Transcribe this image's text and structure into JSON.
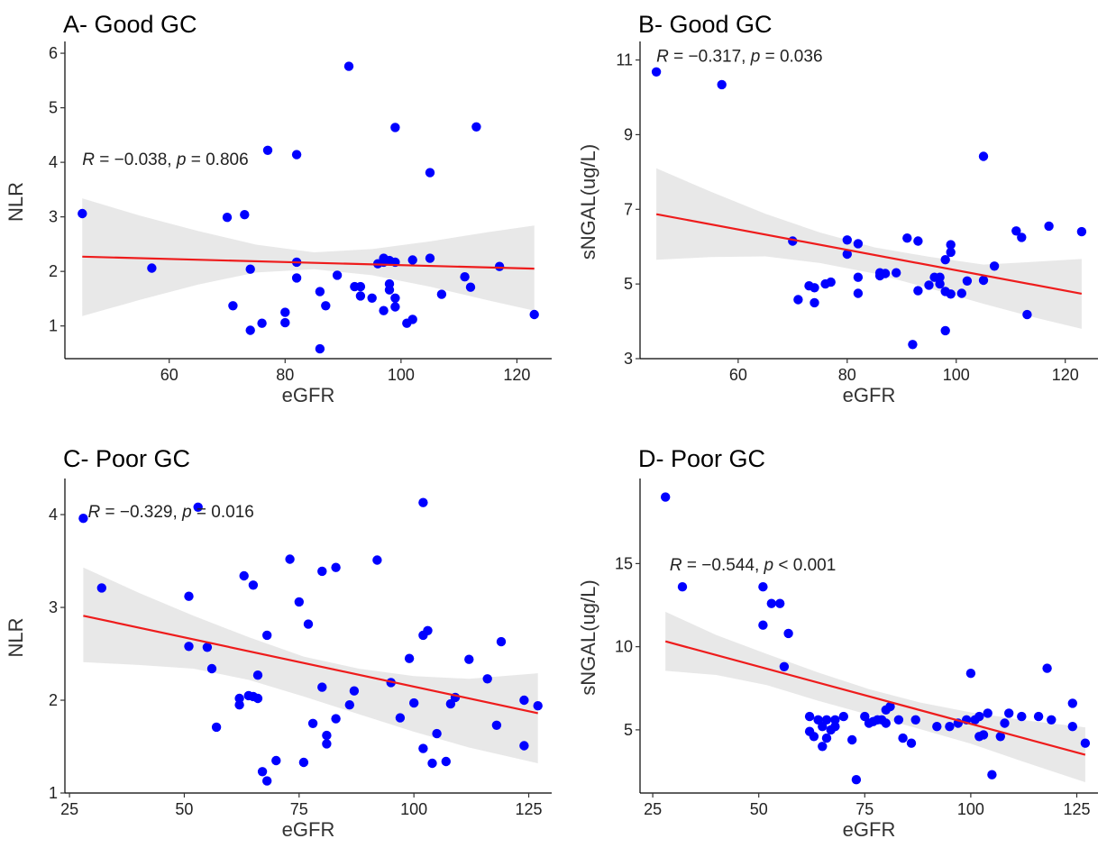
{
  "chart_data": [
    {
      "type": "scatter",
      "title": "A- Good GC",
      "xlabel": "eGFR",
      "ylabel": "NLR",
      "xlim": [
        42,
        126
      ],
      "ylim": [
        0.4,
        6.15
      ],
      "xticks": [
        60,
        80,
        100,
        120
      ],
      "yticks": [
        1,
        2,
        3,
        4,
        5,
        6
      ],
      "annotation": {
        "r_part": "R = −0.038, ",
        "p_sym": "p",
        "p_part": " = 0.806",
        "x": 45,
        "y": 3.95
      },
      "fit": {
        "x": [
          45,
          123
        ],
        "y": [
          2.27,
          2.05
        ]
      },
      "band": {
        "x": [
          45,
          55,
          65,
          75,
          85,
          95,
          105,
          115,
          123
        ],
        "lower": [
          1.18,
          1.48,
          1.76,
          1.98,
          2.04,
          1.93,
          1.72,
          1.47,
          1.28
        ],
        "upper": [
          3.34,
          3.02,
          2.74,
          2.49,
          2.35,
          2.41,
          2.55,
          2.72,
          2.84
        ]
      },
      "points": [
        [
          45,
          3.06
        ],
        [
          57,
          2.06
        ],
        [
          70,
          2.99
        ],
        [
          71,
          1.37
        ],
        [
          73,
          3.04
        ],
        [
          74,
          2.04
        ],
        [
          74,
          0.92
        ],
        [
          76,
          1.05
        ],
        [
          77,
          4.22
        ],
        [
          80,
          1.06
        ],
        [
          80,
          1.25
        ],
        [
          82,
          4.14
        ],
        [
          82,
          2.17
        ],
        [
          82,
          1.88
        ],
        [
          86,
          1.63
        ],
        [
          86,
          0.58
        ],
        [
          87,
          1.37
        ],
        [
          89,
          1.93
        ],
        [
          91,
          5.76
        ],
        [
          92,
          1.72
        ],
        [
          93,
          1.55
        ],
        [
          93,
          1.72
        ],
        [
          95,
          1.51
        ],
        [
          96,
          2.14
        ],
        [
          97,
          2.24
        ],
        [
          97,
          2.17
        ],
        [
          97,
          1.28
        ],
        [
          98,
          2.2
        ],
        [
          98,
          1.77
        ],
        [
          98,
          1.66
        ],
        [
          99,
          4.64
        ],
        [
          99,
          2.17
        ],
        [
          99,
          1.51
        ],
        [
          99,
          1.35
        ],
        [
          101,
          1.05
        ],
        [
          102,
          1.12
        ],
        [
          102,
          2.21
        ],
        [
          105,
          3.81
        ],
        [
          105,
          2.24
        ],
        [
          107,
          1.58
        ],
        [
          111,
          1.9
        ],
        [
          112,
          1.71
        ],
        [
          113,
          4.65
        ],
        [
          117,
          2.09
        ],
        [
          123,
          1.21
        ]
      ]
    },
    {
      "type": "scatter",
      "title": "B- Good GC",
      "xlabel": "eGFR",
      "ylabel": "sNGAL(ug/L)",
      "xlim": [
        42,
        126
      ],
      "ylim": [
        3,
        11.4
      ],
      "xticks": [
        60,
        80,
        100,
        120
      ],
      "yticks": [
        3,
        5,
        7,
        9,
        11
      ],
      "annotation": {
        "r_part": "R = −0.317, ",
        "p_sym": "p",
        "p_part": " = 0.036",
        "x": 45,
        "y": 10.95
      },
      "fit": {
        "x": [
          45,
          123
        ],
        "y": [
          6.87,
          4.74
        ]
      },
      "band": {
        "x": [
          45,
          55,
          65,
          75,
          85,
          95,
          105,
          115,
          123
        ],
        "lower": [
          5.65,
          5.72,
          5.74,
          5.56,
          5.28,
          4.89,
          4.47,
          4.08,
          3.8
        ],
        "upper": [
          8.1,
          7.47,
          6.88,
          6.38,
          5.98,
          5.73,
          5.52,
          5.6,
          5.67
        ]
      },
      "points": [
        [
          45,
          10.68
        ],
        [
          57,
          10.34
        ],
        [
          70,
          6.15
        ],
        [
          71,
          4.58
        ],
        [
          73,
          4.95
        ],
        [
          74,
          4.5
        ],
        [
          74,
          4.9
        ],
        [
          76,
          5.0
        ],
        [
          77,
          5.05
        ],
        [
          80,
          6.18
        ],
        [
          80,
          5.8
        ],
        [
          82,
          6.08
        ],
        [
          82,
          4.75
        ],
        [
          82,
          5.18
        ],
        [
          86,
          5.22
        ],
        [
          86,
          5.3
        ],
        [
          87,
          5.28
        ],
        [
          89,
          5.3
        ],
        [
          91,
          6.23
        ],
        [
          92,
          3.38
        ],
        [
          93,
          6.15
        ],
        [
          93,
          4.82
        ],
        [
          95,
          4.97
        ],
        [
          96,
          5.18
        ],
        [
          97,
          5.18
        ],
        [
          97,
          5.0
        ],
        [
          98,
          3.75
        ],
        [
          98,
          4.8
        ],
        [
          98,
          5.65
        ],
        [
          99,
          5.85
        ],
        [
          99,
          6.05
        ],
        [
          99,
          4.73
        ],
        [
          101,
          4.75
        ],
        [
          102,
          5.08
        ],
        [
          105,
          8.42
        ],
        [
          105,
          5.1
        ],
        [
          107,
          5.48
        ],
        [
          111,
          6.42
        ],
        [
          112,
          6.25
        ],
        [
          113,
          4.18
        ],
        [
          117,
          6.55
        ],
        [
          123,
          6.4
        ]
      ]
    },
    {
      "type": "scatter",
      "title": "C- Poor GC",
      "xlabel": "eGFR",
      "ylabel": "NLR",
      "xlim": [
        24,
        130
      ],
      "ylim": [
        1,
        4.35
      ],
      "xticks": [
        25,
        50,
        75,
        100,
        125
      ],
      "yticks": [
        1,
        2,
        3,
        4
      ],
      "annotation": {
        "r_part": "R = −0.329, ",
        "p_sym": "p",
        "p_part": " = 0.016",
        "x": 29,
        "y": 3.97
      },
      "fit": {
        "x": [
          28,
          127
        ],
        "y": [
          2.91,
          1.86
        ]
      },
      "band": {
        "x": [
          28,
          40,
          52,
          64,
          76,
          88,
          100,
          112,
          127
        ],
        "lower": [
          2.41,
          2.38,
          2.34,
          2.22,
          2.04,
          1.85,
          1.66,
          1.49,
          1.32
        ],
        "upper": [
          3.43,
          3.16,
          2.91,
          2.68,
          2.47,
          2.34,
          2.26,
          2.23,
          2.29
        ]
      },
      "points": [
        [
          28,
          3.96
        ],
        [
          32,
          3.21
        ],
        [
          51,
          3.12
        ],
        [
          51,
          2.58
        ],
        [
          53,
          4.08
        ],
        [
          55,
          2.57
        ],
        [
          56,
          2.34
        ],
        [
          57,
          1.71
        ],
        [
          62,
          1.95
        ],
        [
          62,
          2.02
        ],
        [
          63,
          3.34
        ],
        [
          64,
          2.05
        ],
        [
          65,
          3.24
        ],
        [
          65,
          2.04
        ],
        [
          66,
          2.27
        ],
        [
          66,
          2.02
        ],
        [
          67,
          1.23
        ],
        [
          68,
          2.7
        ],
        [
          68,
          1.13
        ],
        [
          70,
          1.35
        ],
        [
          73,
          3.52
        ],
        [
          75,
          3.06
        ],
        [
          76,
          1.33
        ],
        [
          77,
          2.82
        ],
        [
          78,
          1.75
        ],
        [
          80,
          3.39
        ],
        [
          80,
          2.14
        ],
        [
          81,
          1.62
        ],
        [
          81,
          1.53
        ],
        [
          83,
          3.43
        ],
        [
          83,
          1.8
        ],
        [
          86,
          1.95
        ],
        [
          87,
          2.1
        ],
        [
          92,
          3.51
        ],
        [
          95,
          2.19
        ],
        [
          97,
          1.81
        ],
        [
          99,
          2.45
        ],
        [
          100,
          1.97
        ],
        [
          102,
          4.13
        ],
        [
          102,
          1.48
        ],
        [
          102,
          2.7
        ],
        [
          103,
          2.75
        ],
        [
          104,
          1.32
        ],
        [
          105,
          1.64
        ],
        [
          107,
          1.34
        ],
        [
          108,
          1.96
        ],
        [
          109,
          2.03
        ],
        [
          112,
          2.44
        ],
        [
          116,
          2.23
        ],
        [
          118,
          1.73
        ],
        [
          119,
          2.63
        ],
        [
          124,
          2.0
        ],
        [
          124,
          1.51
        ],
        [
          127,
          1.94
        ]
      ]
    },
    {
      "type": "scatter",
      "title": "D- Poor GC",
      "xlabel": "eGFR",
      "ylabel": "sNGAL(ug/L)",
      "xlim": [
        22,
        130
      ],
      "ylim": [
        1.2,
        19.9
      ],
      "xticks": [
        25,
        50,
        75,
        100,
        125
      ],
      "yticks": [
        5,
        10,
        15
      ],
      "annotation": {
        "r_part": "R = −0.544, ",
        "p_sym": "p",
        "p_part": " < 0.001",
        "x": 29,
        "y": 14.6
      },
      "fit": {
        "x": [
          28,
          127
        ],
        "y": [
          10.32,
          3.5
        ]
      },
      "band": {
        "x": [
          28,
          40,
          52,
          64,
          76,
          88,
          100,
          112,
          127
        ],
        "lower": [
          8.55,
          8.3,
          7.68,
          6.75,
          5.9,
          5.05,
          4.17,
          3.12,
          1.85
        ],
        "upper": [
          12.1,
          10.7,
          9.55,
          8.45,
          7.45,
          6.65,
          6.05,
          5.6,
          5.15
        ]
      },
      "points": [
        [
          28,
          19.0
        ],
        [
          32,
          13.6
        ],
        [
          51,
          13.6
        ],
        [
          51,
          11.3
        ],
        [
          53,
          12.6
        ],
        [
          55,
          12.6
        ],
        [
          56,
          8.8
        ],
        [
          57,
          10.8
        ],
        [
          62,
          4.9
        ],
        [
          62,
          5.8
        ],
        [
          63,
          4.6
        ],
        [
          64,
          5.6
        ],
        [
          65,
          4.0
        ],
        [
          65,
          5.2
        ],
        [
          66,
          4.5
        ],
        [
          66,
          5.6
        ],
        [
          67,
          5.0
        ],
        [
          68,
          5.2
        ],
        [
          68,
          5.6
        ],
        [
          70,
          5.8
        ],
        [
          72,
          4.4
        ],
        [
          73,
          2.0
        ],
        [
          75,
          5.8
        ],
        [
          76,
          5.4
        ],
        [
          77,
          5.5
        ],
        [
          78,
          5.6
        ],
        [
          79,
          5.6
        ],
        [
          80,
          5.4
        ],
        [
          80,
          6.2
        ],
        [
          81,
          6.4
        ],
        [
          83,
          5.6
        ],
        [
          84,
          4.5
        ],
        [
          86,
          4.2
        ],
        [
          87,
          5.6
        ],
        [
          92,
          5.2
        ],
        [
          95,
          5.2
        ],
        [
          97,
          5.4
        ],
        [
          99,
          5.6
        ],
        [
          100,
          8.4
        ],
        [
          101,
          5.6
        ],
        [
          102,
          4.6
        ],
        [
          102,
          5.8
        ],
        [
          103,
          4.7
        ],
        [
          104,
          6.0
        ],
        [
          105,
          2.3
        ],
        [
          107,
          4.6
        ],
        [
          108,
          5.4
        ],
        [
          109,
          6.0
        ],
        [
          112,
          5.8
        ],
        [
          116,
          5.8
        ],
        [
          118,
          8.7
        ],
        [
          119,
          5.6
        ],
        [
          124,
          5.2
        ],
        [
          124,
          6.6
        ],
        [
          127,
          4.2
        ]
      ]
    }
  ],
  "colors": {
    "point": "#0000ff",
    "fit": "#ee1c1c",
    "band": "#d9d9d9"
  }
}
